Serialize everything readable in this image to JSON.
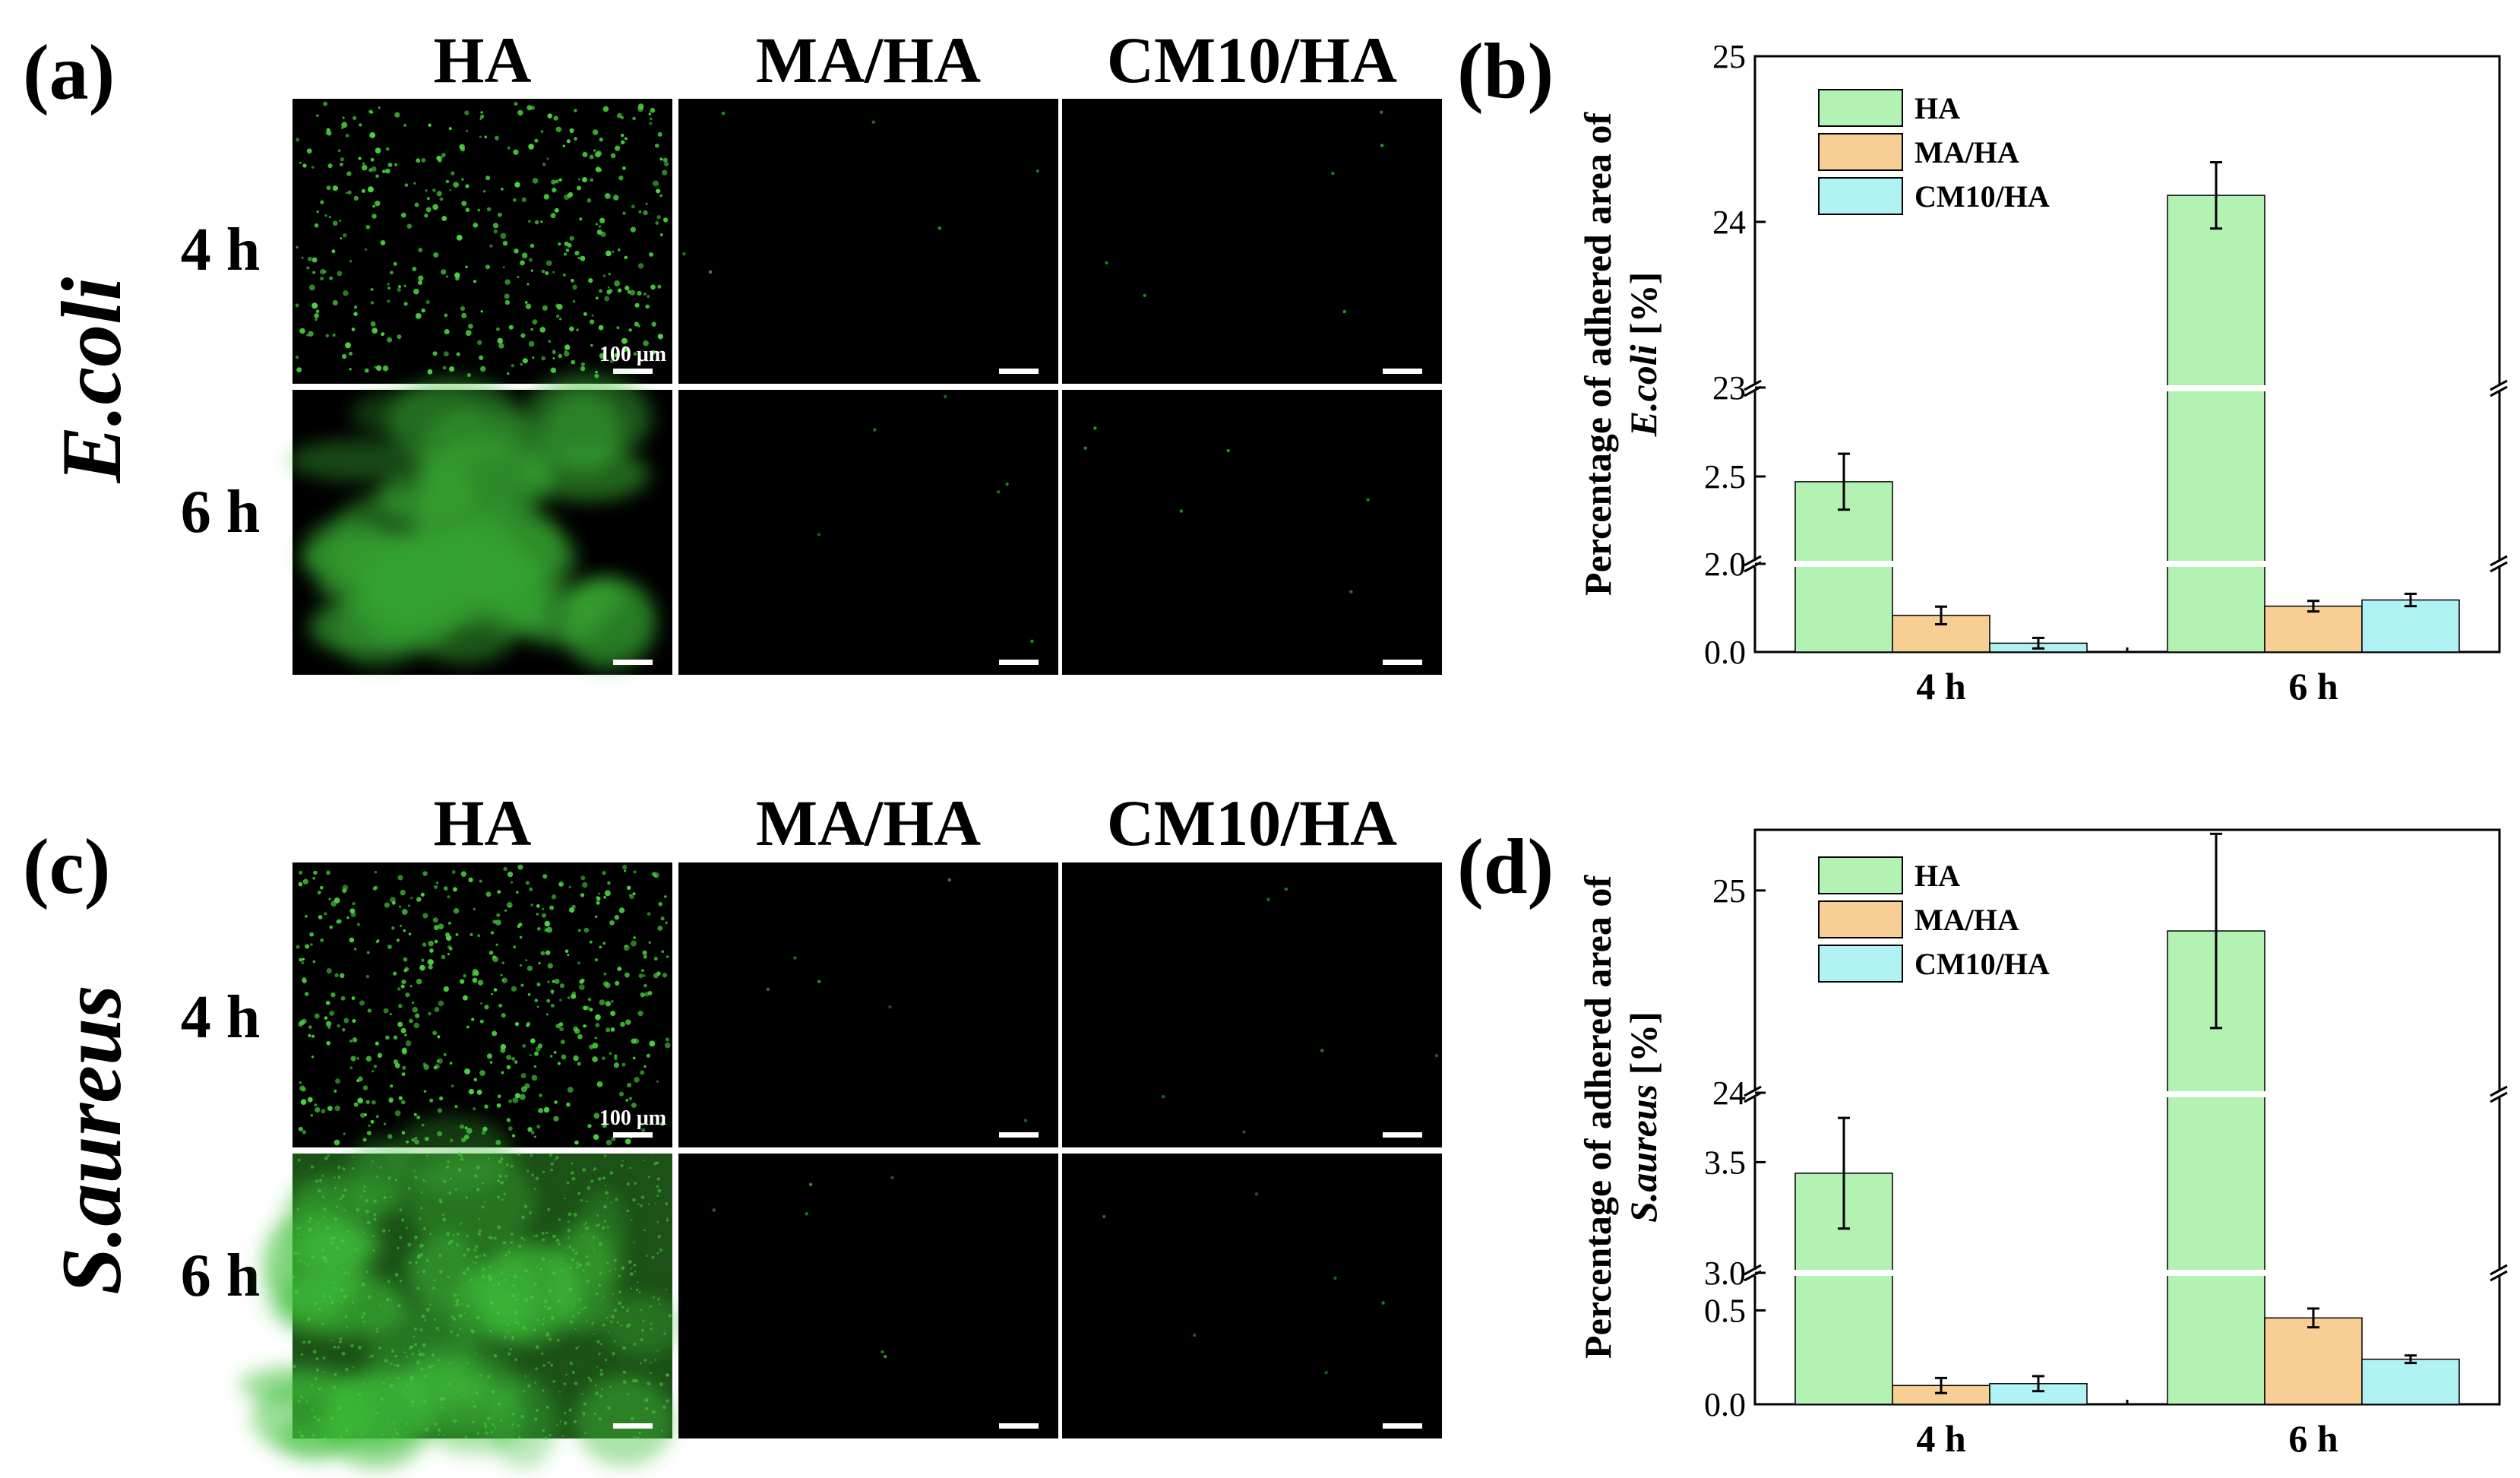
{
  "panel_letters": {
    "a": "(a)",
    "b": "(b)",
    "c": "(c)",
    "d": "(d)"
  },
  "micrographs": {
    "columns": [
      "HA",
      "MA/HA",
      "CM10/HA"
    ],
    "rows": [
      "4 h",
      "6 h"
    ],
    "species_top": "E.coli",
    "species_bottom": "S.aureus",
    "scale_label": "100 μm"
  },
  "colors": {
    "HA": "#b3f2b3",
    "MA/HA": "#f7cf95",
    "CM10/HA": "#b1f2f4",
    "fluorescence": "#3fbf3a",
    "background": "#000000"
  },
  "chart_data": [
    {
      "type": "bar",
      "panel": "b",
      "title": "",
      "xlabel": "",
      "ylabel": "Percentage of adhered area of E.coli [%]",
      "ylabel_line1": "Percentage of adhered area of",
      "ylabel_species": "E.coli",
      "ylabel_unit": " [%]",
      "categories": [
        "4 h",
        "6 h"
      ],
      "series": [
        {
          "name": "HA",
          "values": [
            2.47,
            24.16
          ],
          "errors": [
            0.16,
            0.2
          ]
        },
        {
          "name": "MA/HA",
          "values": [
            0.83,
            1.04
          ],
          "errors": [
            0.2,
            0.12
          ]
        },
        {
          "name": "CM10/HA",
          "values": [
            0.2,
            1.18
          ],
          "errors": [
            0.12,
            0.14
          ]
        }
      ],
      "broken_axis": true,
      "segments": [
        {
          "range": [
            0,
            2.0
          ],
          "ticks": [
            "0.0",
            "2.0"
          ]
        },
        {
          "range": [
            2.0,
            3.0
          ],
          "ticks": [
            "2.5"
          ]
        },
        {
          "range": [
            23,
            25
          ],
          "ticks": [
            "23",
            "24",
            "25"
          ]
        }
      ],
      "legend": "top-left"
    },
    {
      "type": "bar",
      "panel": "d",
      "title": "",
      "xlabel": "",
      "ylabel": "Percentage of adhered area of S.aureus [%]",
      "ylabel_line1": "Percentage of adhered area of",
      "ylabel_species": "S.aureus",
      "ylabel_unit": " [%]",
      "categories": [
        "4 h",
        "6 h"
      ],
      "series": [
        {
          "name": "HA",
          "values": [
            3.45,
            24.8
          ],
          "errors": [
            0.25,
            0.48
          ]
        },
        {
          "name": "MA/HA",
          "values": [
            0.1,
            0.46
          ],
          "errors": [
            0.04,
            0.05
          ]
        },
        {
          "name": "CM10/HA",
          "values": [
            0.11,
            0.24
          ],
          "errors": [
            0.04,
            0.02
          ]
        }
      ],
      "broken_axis": true,
      "segments": [
        {
          "range": [
            0,
            0.7
          ],
          "ticks": [
            "0.0",
            "0.5"
          ]
        },
        {
          "range": [
            3.0,
            3.8
          ],
          "ticks": [
            "3.0",
            "3.5"
          ]
        },
        {
          "range": [
            24,
            25.3
          ],
          "ticks": [
            "24",
            "25"
          ]
        }
      ],
      "legend": "top-left"
    }
  ]
}
